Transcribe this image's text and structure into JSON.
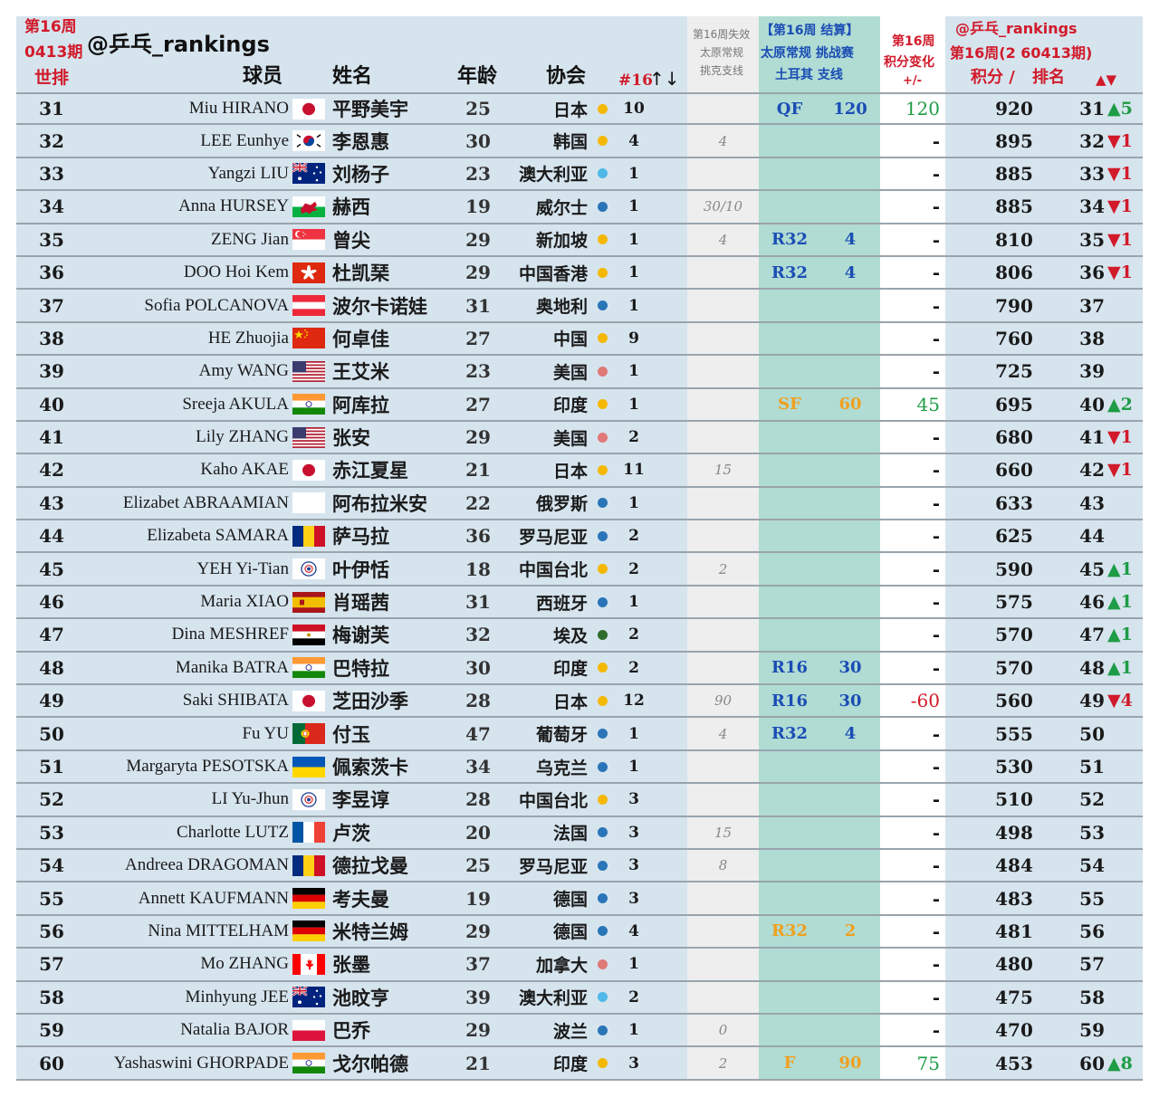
{
  "header": {
    "week_label": "第16周",
    "issue_label": "0413期",
    "world_rank_label": "世排",
    "handle": "@乒乓_rankings",
    "player_label": "球员",
    "name_label": "姓名",
    "age_label": "年龄",
    "assoc_label": "协会",
    "week_count_label": "#16",
    "sort_arrows": "↑↓",
    "lost_title": "第16周失效",
    "lost_line2": "太原常规",
    "lost_line3": "挑克支线",
    "result_title": "【第16周 结算】",
    "result_line2": "太原常规 挑战赛",
    "result_line3": "土耳其 支线",
    "change_title": "第16周",
    "change_line2": "积分变化",
    "change_line3": "+/-",
    "right_handle": "@乒乓_rankings",
    "right_issue": "第16周(2 60413期)",
    "points_label": "积分 /",
    "rank_label": "排名",
    "move_arrows": "▲▼"
  },
  "colors": {
    "title_red": "#d11a2a",
    "result_blue": "#1b4db5",
    "up_green": "#1f9c46",
    "dot_yellow": "#f5b800",
    "dot_blue": "#2a74b8",
    "dot_lightblue": "#4fb8e8",
    "dot_pink": "#e07878",
    "dot_darkgreen": "#2f6b2a"
  },
  "rows": [
    {
      "wr": "31",
      "name": "Miu HIRANO",
      "flag": "japan",
      "cn": "平野美宇",
      "age": "25",
      "assoc": "日本",
      "dot": "yellow",
      "wk": "10",
      "lost": "",
      "res": "QF",
      "respts": "120",
      "resc": "blue",
      "chg": "120",
      "chgc": "pos",
      "pts": "920",
      "rank": "31",
      "mv": "▲5",
      "mvc": "up"
    },
    {
      "wr": "32",
      "name": "LEE Eunhye",
      "flag": "korea",
      "cn": "李恩惠",
      "age": "30",
      "assoc": "韩国",
      "dot": "yellow",
      "wk": "4",
      "lost": "4",
      "res": "",
      "respts": "",
      "resc": "",
      "chg": "-",
      "chgc": "dash",
      "pts": "895",
      "rank": "32",
      "mv": "▼1",
      "mvc": "down"
    },
    {
      "wr": "33",
      "name": "Yangzi LIU",
      "flag": "australia",
      "cn": "刘杨子",
      "age": "23",
      "assoc": "澳大利亚",
      "dot": "lightblue",
      "wk": "1",
      "lost": "",
      "res": "",
      "respts": "",
      "resc": "",
      "chg": "-",
      "chgc": "dash",
      "pts": "885",
      "rank": "33",
      "mv": "▼1",
      "mvc": "down"
    },
    {
      "wr": "34",
      "name": "Anna HURSEY",
      "flag": "wales",
      "cn": "赫西",
      "age": "19",
      "assoc": "威尔士",
      "dot": "blue",
      "wk": "1",
      "lost": "30/10",
      "res": "",
      "respts": "",
      "resc": "",
      "chg": "-",
      "chgc": "dash",
      "pts": "885",
      "rank": "34",
      "mv": "▼1",
      "mvc": "down"
    },
    {
      "wr": "35",
      "name": "ZENG Jian",
      "flag": "singapore",
      "cn": "曾尖",
      "age": "29",
      "assoc": "新加坡",
      "dot": "yellow",
      "wk": "1",
      "lost": "4",
      "res": "R32",
      "respts": "4",
      "resc": "blue",
      "chg": "-",
      "chgc": "dash",
      "pts": "810",
      "rank": "35",
      "mv": "▼1",
      "mvc": "down"
    },
    {
      "wr": "36",
      "name": "DOO Hoi Kem",
      "flag": "hongkong",
      "cn": "杜凯琹",
      "age": "29",
      "assoc": "中国香港",
      "dot": "yellow",
      "wk": "1",
      "lost": "",
      "res": "R32",
      "respts": "4",
      "resc": "blue",
      "chg": "-",
      "chgc": "dash",
      "pts": "806",
      "rank": "36",
      "mv": "▼1",
      "mvc": "down"
    },
    {
      "wr": "37",
      "name": "Sofia POLCANOVA",
      "flag": "austria",
      "cn": "波尔卡诺娃",
      "age": "31",
      "assoc": "奥地利",
      "dot": "blue",
      "wk": "1",
      "lost": "",
      "res": "",
      "respts": "",
      "resc": "",
      "chg": "-",
      "chgc": "dash",
      "pts": "790",
      "rank": "37",
      "mv": "",
      "mvc": ""
    },
    {
      "wr": "38",
      "name": "HE Zhuojia",
      "flag": "china",
      "cn": "何卓佳",
      "age": "27",
      "assoc": "中国",
      "dot": "yellow",
      "wk": "9",
      "lost": "",
      "res": "",
      "respts": "",
      "resc": "",
      "chg": "-",
      "chgc": "dash",
      "pts": "760",
      "rank": "38",
      "mv": "",
      "mvc": ""
    },
    {
      "wr": "39",
      "name": "Amy WANG",
      "flag": "usa",
      "cn": "王艾米",
      "age": "23",
      "assoc": "美国",
      "dot": "pink",
      "wk": "1",
      "lost": "",
      "res": "",
      "respts": "",
      "resc": "",
      "chg": "-",
      "chgc": "dash",
      "pts": "725",
      "rank": "39",
      "mv": "",
      "mvc": ""
    },
    {
      "wr": "40",
      "name": "Sreeja AKULA",
      "flag": "india",
      "cn": "阿库拉",
      "age": "27",
      "assoc": "印度",
      "dot": "yellow",
      "wk": "1",
      "lost": "",
      "res": "SF",
      "respts": "60",
      "resc": "orange",
      "chg": "45",
      "chgc": "pos",
      "pts": "695",
      "rank": "40",
      "mv": "▲2",
      "mvc": "up"
    },
    {
      "wr": "41",
      "name": "Lily ZHANG",
      "flag": "usa",
      "cn": "张安",
      "age": "29",
      "assoc": "美国",
      "dot": "pink",
      "wk": "2",
      "lost": "",
      "res": "",
      "respts": "",
      "resc": "",
      "chg": "-",
      "chgc": "dash",
      "pts": "680",
      "rank": "41",
      "mv": "▼1",
      "mvc": "down"
    },
    {
      "wr": "42",
      "name": "Kaho AKAE",
      "flag": "japan",
      "cn": "赤江夏星",
      "age": "21",
      "assoc": "日本",
      "dot": "yellow",
      "wk": "11",
      "lost": "15",
      "res": "",
      "respts": "",
      "resc": "",
      "chg": "-",
      "chgc": "dash",
      "pts": "660",
      "rank": "42",
      "mv": "▼1",
      "mvc": "down"
    },
    {
      "wr": "43",
      "name": "Elizabet ABRAAMIAN",
      "flag": "blank",
      "cn": "阿布拉米安",
      "age": "22",
      "assoc": "俄罗斯",
      "dot": "blue",
      "wk": "1",
      "lost": "",
      "res": "",
      "respts": "",
      "resc": "",
      "chg": "-",
      "chgc": "dash",
      "pts": "633",
      "rank": "43",
      "mv": "",
      "mvc": ""
    },
    {
      "wr": "44",
      "name": "Elizabeta SAMARA",
      "flag": "romania",
      "cn": "萨马拉",
      "age": "36",
      "assoc": "罗马尼亚",
      "dot": "blue",
      "wk": "2",
      "lost": "",
      "res": "",
      "respts": "",
      "resc": "",
      "chg": "-",
      "chgc": "dash",
      "pts": "625",
      "rank": "44",
      "mv": "",
      "mvc": ""
    },
    {
      "wr": "45",
      "name": "YEH Yi-Tian",
      "flag": "taipei",
      "cn": "叶伊恬",
      "age": "18",
      "assoc": "中国台北",
      "dot": "yellow",
      "wk": "2",
      "lost": "2",
      "res": "",
      "respts": "",
      "resc": "",
      "chg": "-",
      "chgc": "dash",
      "pts": "590",
      "rank": "45",
      "mv": "▲1",
      "mvc": "up"
    },
    {
      "wr": "46",
      "name": "Maria XIAO",
      "flag": "spain",
      "cn": "肖瑶茜",
      "age": "31",
      "assoc": "西班牙",
      "dot": "blue",
      "wk": "1",
      "lost": "",
      "res": "",
      "respts": "",
      "resc": "",
      "chg": "-",
      "chgc": "dash",
      "pts": "575",
      "rank": "46",
      "mv": "▲1",
      "mvc": "up"
    },
    {
      "wr": "47",
      "name": "Dina MESHREF",
      "flag": "egypt",
      "cn": "梅谢芙",
      "age": "32",
      "assoc": "埃及",
      "dot": "darkgreen",
      "wk": "2",
      "lost": "",
      "res": "",
      "respts": "",
      "resc": "",
      "chg": "-",
      "chgc": "dash",
      "pts": "570",
      "rank": "47",
      "mv": "▲1",
      "mvc": "up"
    },
    {
      "wr": "48",
      "name": "Manika BATRA",
      "flag": "india",
      "cn": "巴特拉",
      "age": "30",
      "assoc": "印度",
      "dot": "yellow",
      "wk": "2",
      "lost": "",
      "res": "R16",
      "respts": "30",
      "resc": "blue",
      "chg": "-",
      "chgc": "dash",
      "pts": "570",
      "rank": "48",
      "mv": "▲1",
      "mvc": "up"
    },
    {
      "wr": "49",
      "name": "Saki SHIBATA",
      "flag": "japan",
      "cn": "芝田沙季",
      "age": "28",
      "assoc": "日本",
      "dot": "yellow",
      "wk": "12",
      "lost": "90",
      "res": "R16",
      "respts": "30",
      "resc": "blue",
      "chg": "-60",
      "chgc": "neg",
      "pts": "560",
      "rank": "49",
      "mv": "▼4",
      "mvc": "down"
    },
    {
      "wr": "50",
      "name": "Fu YU",
      "flag": "portugal",
      "cn": "付玉",
      "age": "47",
      "assoc": "葡萄牙",
      "dot": "blue",
      "wk": "1",
      "lost": "4",
      "res": "R32",
      "respts": "4",
      "resc": "blue",
      "chg": "-",
      "chgc": "dash",
      "pts": "555",
      "rank": "50",
      "mv": "",
      "mvc": ""
    },
    {
      "wr": "51",
      "name": "Margaryta PESOTSKA",
      "flag": "ukraine",
      "cn": "佩索茨卡",
      "age": "34",
      "assoc": "乌克兰",
      "dot": "blue",
      "wk": "1",
      "lost": "",
      "res": "",
      "respts": "",
      "resc": "",
      "chg": "-",
      "chgc": "dash",
      "pts": "530",
      "rank": "51",
      "mv": "",
      "mvc": ""
    },
    {
      "wr": "52",
      "name": "LI Yu-Jhun",
      "flag": "taipei",
      "cn": "李昱谆",
      "age": "28",
      "assoc": "中国台北",
      "dot": "yellow",
      "wk": "3",
      "lost": "",
      "res": "",
      "respts": "",
      "resc": "",
      "chg": "-",
      "chgc": "dash",
      "pts": "510",
      "rank": "52",
      "mv": "",
      "mvc": ""
    },
    {
      "wr": "53",
      "name": "Charlotte LUTZ",
      "flag": "france",
      "cn": "卢茨",
      "age": "20",
      "assoc": "法国",
      "dot": "blue",
      "wk": "3",
      "lost": "15",
      "res": "",
      "respts": "",
      "resc": "",
      "chg": "-",
      "chgc": "dash",
      "pts": "498",
      "rank": "53",
      "mv": "",
      "mvc": ""
    },
    {
      "wr": "54",
      "name": "Andreea DRAGOMAN",
      "flag": "romania",
      "cn": "德拉戈曼",
      "age": "25",
      "assoc": "罗马尼亚",
      "dot": "blue",
      "wk": "3",
      "lost": "8",
      "res": "",
      "respts": "",
      "resc": "",
      "chg": "-",
      "chgc": "dash",
      "pts": "484",
      "rank": "54",
      "mv": "",
      "mvc": ""
    },
    {
      "wr": "55",
      "name": "Annett KAUFMANN",
      "flag": "germany",
      "cn": "考夫曼",
      "age": "19",
      "assoc": "德国",
      "dot": "blue",
      "wk": "3",
      "lost": "",
      "res": "",
      "respts": "",
      "resc": "",
      "chg": "-",
      "chgc": "dash",
      "pts": "483",
      "rank": "55",
      "mv": "",
      "mvc": ""
    },
    {
      "wr": "56",
      "name": "Nina MITTELHAM",
      "flag": "germany",
      "cn": "米特兰姆",
      "age": "29",
      "assoc": "德国",
      "dot": "blue",
      "wk": "4",
      "lost": "",
      "res": "R32",
      "respts": "2",
      "resc": "orange",
      "chg": "-",
      "chgc": "dash",
      "pts": "481",
      "rank": "56",
      "mv": "",
      "mvc": ""
    },
    {
      "wr": "57",
      "name": "Mo ZHANG",
      "flag": "canada",
      "cn": "张墨",
      "age": "37",
      "assoc": "加拿大",
      "dot": "pink",
      "wk": "1",
      "lost": "",
      "res": "",
      "respts": "",
      "resc": "",
      "chg": "-",
      "chgc": "dash",
      "pts": "480",
      "rank": "57",
      "mv": "",
      "mvc": ""
    },
    {
      "wr": "58",
      "name": "Minhyung JEE",
      "flag": "australia",
      "cn": "池旼亨",
      "age": "39",
      "assoc": "澳大利亚",
      "dot": "lightblue",
      "wk": "2",
      "lost": "",
      "res": "",
      "respts": "",
      "resc": "",
      "chg": "-",
      "chgc": "dash",
      "pts": "475",
      "rank": "58",
      "mv": "",
      "mvc": ""
    },
    {
      "wr": "59",
      "name": "Natalia BAJOR",
      "flag": "poland",
      "cn": "巴乔",
      "age": "29",
      "assoc": "波兰",
      "dot": "blue",
      "wk": "1",
      "lost": "0",
      "res": "",
      "respts": "",
      "resc": "",
      "chg": "-",
      "chgc": "dash",
      "pts": "470",
      "rank": "59",
      "mv": "",
      "mvc": ""
    },
    {
      "wr": "60",
      "name": "Yashaswini GHORPADE",
      "flag": "india",
      "cn": "戈尔帕德",
      "age": "21",
      "assoc": "印度",
      "dot": "yellow",
      "wk": "3",
      "lost": "2",
      "res": "F",
      "respts": "90",
      "resc": "orange",
      "chg": "75",
      "chgc": "pos",
      "pts": "453",
      "rank": "60",
      "mv": "▲8",
      "mvc": "up"
    }
  ]
}
